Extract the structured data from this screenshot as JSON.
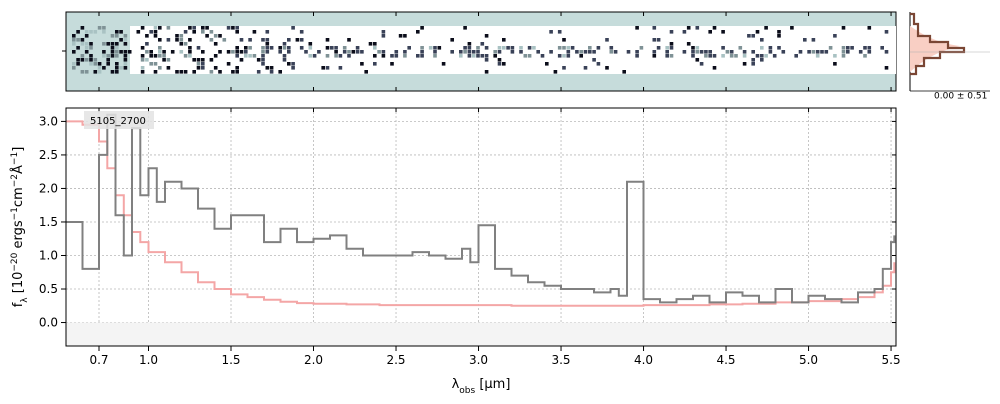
{
  "chart_data": {
    "type": "line",
    "title": "",
    "annotation": "5105_2700",
    "xlabel_main": "λ",
    "xlabel_sub": "obs",
    "xlabel_unit": " [μm]",
    "ylabel": "f_λ [10^-20 ergs^-1 cm^-2 Å^-1]",
    "ylabel_main": "f",
    "ylabel_sub": "λ",
    "ylabel_pre": " [10",
    "ylabel_exp1": "−20",
    "ylabel_mid": " ergs",
    "ylabel_exp2": "−1",
    "ylabel_cm": "cm",
    "ylabel_exp3": "−2",
    "ylabel_ang": "Å",
    "ylabel_exp4": "−1",
    "ylabel_post": "]",
    "xlim": [
      0.5,
      5.53
    ],
    "ylim": [
      -0.35,
      3.2
    ],
    "x_ticks": [
      0.7,
      1.0,
      1.5,
      2.0,
      2.5,
      3.0,
      3.5,
      4.0,
      4.5,
      5.0,
      5.5
    ],
    "x_tick_labels": [
      "0.7",
      "1.0",
      "1.5",
      "2.0",
      "2.5",
      "3.0",
      "3.5",
      "4.0",
      "4.5",
      "5.0",
      "5.5"
    ],
    "y_ticks": [
      0.0,
      0.5,
      1.0,
      1.5,
      2.0,
      2.5,
      3.0
    ],
    "y_tick_labels": [
      "0.0",
      "0.5",
      "1.0",
      "1.5",
      "2.0",
      "2.5",
      "3.0"
    ],
    "grid": true,
    "series": [
      {
        "color": "#808080",
        "style": "steps",
        "x": [
          0.5,
          0.6,
          0.7,
          0.75,
          0.8,
          0.85,
          0.9,
          0.95,
          1.0,
          1.05,
          1.1,
          1.2,
          1.3,
          1.4,
          1.5,
          1.6,
          1.7,
          1.8,
          1.9,
          2.0,
          2.1,
          2.2,
          2.3,
          2.4,
          2.5,
          2.6,
          2.7,
          2.8,
          2.9,
          2.95,
          3.0,
          3.1,
          3.2,
          3.3,
          3.4,
          3.5,
          3.6,
          3.7,
          3.8,
          3.85,
          3.9,
          4.0,
          4.1,
          4.2,
          4.3,
          4.4,
          4.5,
          4.6,
          4.7,
          4.8,
          4.9,
          5.0,
          5.1,
          5.2,
          5.3,
          5.4,
          5.45,
          5.5,
          5.52
        ],
        "y": [
          1.5,
          0.8,
          2.5,
          3.1,
          1.6,
          1.0,
          2.9,
          1.9,
          2.3,
          1.8,
          2.1,
          2.0,
          1.7,
          1.4,
          1.6,
          1.6,
          1.2,
          1.4,
          1.2,
          1.25,
          1.3,
          1.1,
          1.0,
          1.0,
          1.0,
          1.05,
          1.0,
          0.95,
          1.1,
          0.9,
          1.45,
          0.8,
          0.7,
          0.6,
          0.55,
          0.5,
          0.5,
          0.45,
          0.5,
          0.4,
          2.1,
          0.35,
          0.3,
          0.35,
          0.4,
          0.3,
          0.45,
          0.4,
          0.3,
          0.5,
          0.3,
          0.4,
          0.35,
          0.3,
          0.45,
          0.5,
          0.8,
          1.2,
          1.3
        ]
      },
      {
        "color": "#f4a6a6",
        "style": "steps",
        "x": [
          0.5,
          0.6,
          0.7,
          0.75,
          0.8,
          0.85,
          0.9,
          0.95,
          1.0,
          1.1,
          1.2,
          1.3,
          1.4,
          1.5,
          1.6,
          1.7,
          1.8,
          1.9,
          2.0,
          2.2,
          2.4,
          2.6,
          2.8,
          3.0,
          3.2,
          3.4,
          3.6,
          3.8,
          4.0,
          4.2,
          4.4,
          4.6,
          4.8,
          5.0,
          5.2,
          5.3,
          5.4,
          5.45,
          5.5,
          5.52
        ],
        "y": [
          3.0,
          2.95,
          2.7,
          2.3,
          1.9,
          1.6,
          1.35,
          1.2,
          1.05,
          0.9,
          0.75,
          0.6,
          0.5,
          0.42,
          0.38,
          0.34,
          0.31,
          0.29,
          0.28,
          0.27,
          0.26,
          0.26,
          0.26,
          0.26,
          0.25,
          0.25,
          0.25,
          0.25,
          0.26,
          0.26,
          0.27,
          0.28,
          0.3,
          0.32,
          0.35,
          0.38,
          0.45,
          0.55,
          0.75,
          0.9
        ]
      }
    ],
    "side_histogram": {
      "label": "0.00 ± 0.51"
    }
  }
}
